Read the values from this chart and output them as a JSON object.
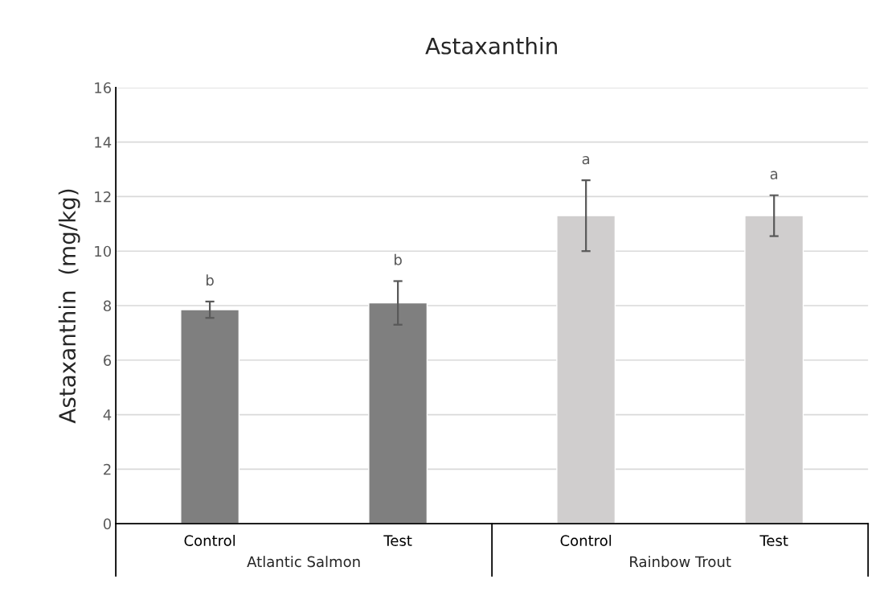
{
  "chart_data": {
    "type": "bar",
    "title": "Astaxanthin",
    "ylabel": "Astaxanthin  (mg/kg)",
    "categories": [
      "Control",
      "Test",
      "Control",
      "Test"
    ],
    "values": [
      7.85,
      8.1,
      11.3,
      11.3
    ],
    "errors": [
      0.3,
      0.8,
      1.3,
      0.75
    ],
    "colors": [
      "#7f7f7f",
      "#7f7f7f",
      "#d0cece",
      "#d0cece"
    ],
    "annotations": [
      "b",
      "b",
      "a",
      "a",
      "Atlantic Salmon",
      "Rainbow Trout"
    ],
    "ylim": [
      0,
      16
    ],
    "yticks": [
      0,
      2,
      4,
      6,
      8,
      10,
      12,
      14,
      16
    ],
    "grid": "y",
    "legend": false
  }
}
